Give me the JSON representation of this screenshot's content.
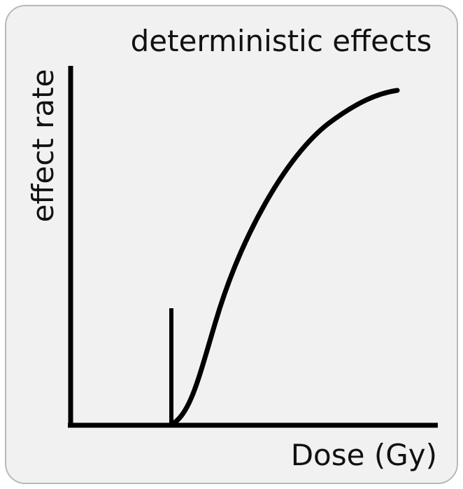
{
  "title": "deterministic effects",
  "x_label": "Dose (Gy)",
  "y_label": "effect rate"
}
